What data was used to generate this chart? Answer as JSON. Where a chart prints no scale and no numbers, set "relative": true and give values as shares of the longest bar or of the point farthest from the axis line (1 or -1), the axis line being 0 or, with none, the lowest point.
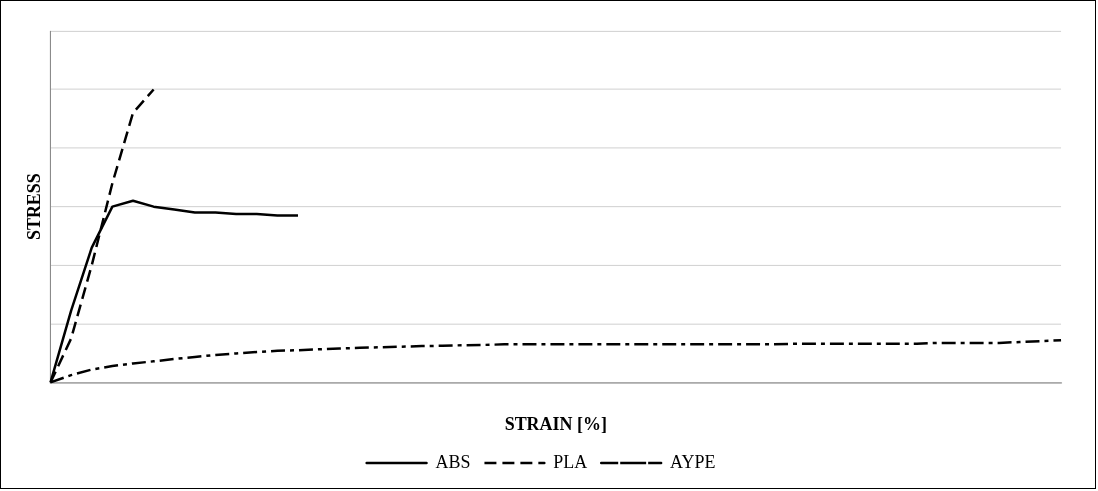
{
  "chart_data": {
    "type": "line",
    "relative": true,
    "xlabel": "STRAIN [%]",
    "ylabel": "STRESS",
    "grid": "y",
    "legend": "bottom",
    "marker": "none",
    "categories": [
      null,
      null,
      null,
      null,
      null,
      null,
      null,
      null,
      null,
      null,
      null,
      null,
      null,
      null,
      null,
      null,
      null,
      null,
      null,
      null,
      null,
      null,
      null,
      null,
      null,
      null,
      null,
      null,
      null,
      null,
      null,
      null,
      null,
      null,
      null,
      null,
      null,
      null,
      null,
      null,
      null,
      null,
      null,
      null,
      null,
      null,
      null,
      null,
      null,
      null
    ],
    "series": [
      {
        "name": "ABS",
        "color": "#000000",
        "line_style": "solid",
        "values": [
          0,
          0.245,
          0.46,
          0.6,
          0.62,
          0.6,
          0.59,
          0.58,
          0.58,
          0.575,
          0.575,
          0.57,
          0.57,
          null,
          null,
          null,
          null,
          null,
          null,
          null,
          null,
          null,
          null,
          null,
          null,
          null,
          null,
          null,
          null,
          null,
          null,
          null,
          null,
          null,
          null,
          null,
          null,
          null,
          null,
          null,
          null,
          null,
          null,
          null,
          null,
          null,
          null,
          null,
          null,
          null
        ]
      },
      {
        "name": "PLA",
        "color": "#000000",
        "line_style": "dashed",
        "values": [
          0,
          0.15,
          0.4,
          0.68,
          0.92,
          1,
          null,
          null,
          null,
          null,
          null,
          null,
          null,
          null,
          null,
          null,
          null,
          null,
          null,
          null,
          null,
          null,
          null,
          null,
          null,
          null,
          null,
          null,
          null,
          null,
          null,
          null,
          null,
          null,
          null,
          null,
          null,
          null,
          null,
          null,
          null,
          null,
          null,
          null,
          null,
          null,
          null,
          null,
          null,
          null
        ]
      },
      {
        "name": "AYPE",
        "color": "#000000",
        "line_style": "dashdot",
        "values": [
          0,
          0.025,
          0.044,
          0.056,
          0.065,
          0.072,
          0.08,
          0.087,
          0.094,
          0.099,
          0.104,
          0.108,
          0.11,
          0.113,
          0.116,
          0.118,
          0.12,
          0.122,
          0.124,
          0.125,
          0.127,
          0.128,
          0.13,
          0.13,
          0.13,
          0.13,
          0.13,
          0.13,
          0.13,
          0.13,
          0.13,
          0.13,
          0.13,
          0.13,
          0.13,
          0.13,
          0.132,
          0.132,
          0.132,
          0.132,
          0.132,
          0.132,
          0.132,
          0.135,
          0.135,
          0.135,
          0.135,
          0.138,
          0.141,
          0.144
        ]
      }
    ]
  }
}
